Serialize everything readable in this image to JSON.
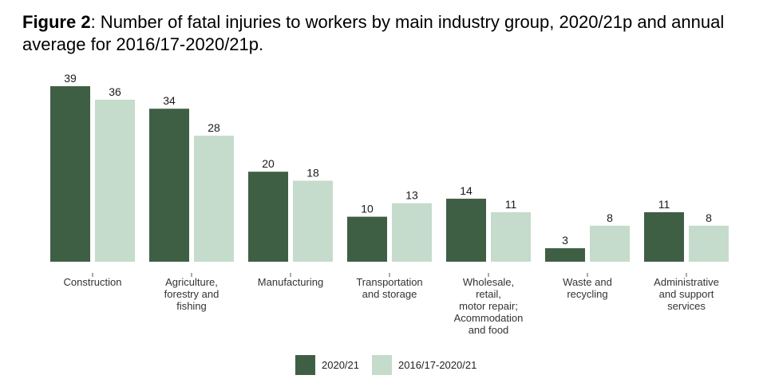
{
  "figure": {
    "label": "Figure 2",
    "title": ": Number of fatal injuries to workers by main industry group, 2020/21p and annual average for 2016/17-2020/21p."
  },
  "chart_data": {
    "type": "bar",
    "categories": [
      [
        "Construction"
      ],
      [
        "Agriculture,",
        "forestry and",
        "fishing"
      ],
      [
        "Manufacturing"
      ],
      [
        "Transportation",
        "and storage"
      ],
      [
        "Wholesale,",
        "retail,",
        "motor repair;",
        "Acommodation",
        "and food"
      ],
      [
        "Waste and",
        "recycling"
      ],
      [
        "Administrative",
        "and support",
        "services"
      ]
    ],
    "series": [
      {
        "name": "2020/21",
        "color": "#3f5f44",
        "values": [
          39,
          34,
          20,
          10,
          14,
          3,
          11
        ]
      },
      {
        "name": "2016/17-2020/21",
        "color": "#c5dbcc",
        "values": [
          36,
          28,
          18,
          13,
          11,
          8,
          8
        ]
      }
    ],
    "ylim": [
      0,
      39
    ],
    "grid": false,
    "legend_position": "bottom"
  }
}
